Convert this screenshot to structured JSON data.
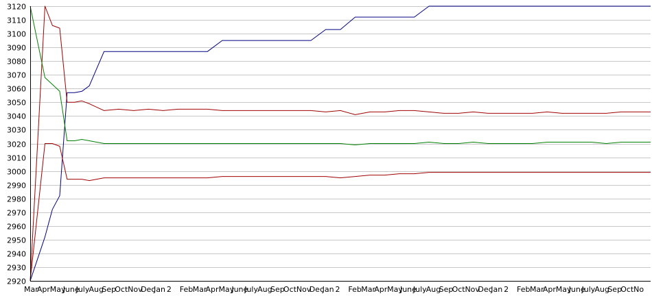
{
  "chart_data": {
    "type": "line",
    "title": "",
    "xlabel": "",
    "ylabel": "",
    "ylim": [
      2920,
      3120
    ],
    "yticks": [
      2920,
      2930,
      2940,
      2950,
      2960,
      2970,
      2980,
      2990,
      3000,
      3010,
      3020,
      3030,
      3040,
      3050,
      3060,
      3070,
      3080,
      3090,
      3100,
      3110,
      3120
    ],
    "grid": true,
    "legend": "none",
    "x": [
      0,
      1,
      1.5,
      2,
      2.5,
      3,
      3.5,
      4,
      5,
      6,
      7,
      8,
      9,
      10,
      11,
      12,
      13,
      14,
      15,
      16,
      17,
      18,
      19,
      20,
      21,
      22,
      23,
      24,
      25,
      26,
      27,
      28,
      29,
      30,
      31,
      32,
      33,
      34,
      35,
      36,
      37,
      38,
      39,
      40,
      41,
      42
    ],
    "xtick_labels": [
      "Mar",
      "Apr",
      "May",
      "June",
      "July",
      "Aug",
      "Sep",
      "Oct",
      "Nov",
      "Dec",
      "Jan",
      "2",
      "Feb",
      "Mar",
      "Apr",
      "May",
      "June",
      "July",
      "Aug",
      "Sep",
      "Oct",
      "Nov",
      "Dec",
      "Jan",
      "2",
      "Feb",
      "Mar",
      "Apr",
      "May",
      "June",
      "July",
      "Aug",
      "Sep",
      "Oct",
      "Nov",
      "Dec",
      "Jan",
      "2",
      "Feb",
      "Mar",
      "Apr",
      "May",
      "June",
      "July",
      "Aug",
      "Sep",
      "Oct",
      "No"
    ],
    "series": [
      {
        "color": "#000080",
        "values": [
          2920,
          2952,
          2972,
          2982,
          3057,
          3057,
          3058,
          3062,
          3087,
          3087,
          3087,
          3087,
          3087,
          3087,
          3087,
          3087,
          3095,
          3095,
          3095,
          3095,
          3095,
          3095,
          3095,
          3103,
          3103,
          3112,
          3112,
          3112,
          3112,
          3112,
          3120,
          3120,
          3120,
          3120,
          3120,
          3120,
          3120,
          3120,
          3120,
          3120,
          3120,
          3120,
          3120,
          3120,
          3120,
          3120
        ]
      },
      {
        "color": "#a00000",
        "values": [
          2920,
          3120,
          3106,
          3104,
          3050,
          3050,
          3051,
          3049,
          3044,
          3045,
          3044,
          3045,
          3044,
          3045,
          3045,
          3045,
          3044,
          3044,
          3044,
          3044,
          3044,
          3044,
          3044,
          3043,
          3044,
          3041,
          3043,
          3043,
          3044,
          3044,
          3043,
          3042,
          3042,
          3043,
          3042,
          3042,
          3042,
          3042,
          3043,
          3042,
          3042,
          3042,
          3042,
          3043,
          3043,
          3043
        ]
      },
      {
        "color": "#008000",
        "values": [
          3120,
          3068,
          3063,
          3058,
          3022,
          3022,
          3023,
          3022,
          3020,
          3020,
          3020,
          3020,
          3020,
          3020,
          3020,
          3020,
          3020,
          3020,
          3020,
          3020,
          3020,
          3020,
          3020,
          3020,
          3020,
          3019,
          3020,
          3020,
          3020,
          3020,
          3021,
          3020,
          3020,
          3021,
          3020,
          3020,
          3020,
          3020,
          3021,
          3021,
          3021,
          3021,
          3020,
          3021,
          3021,
          3021
        ]
      },
      {
        "color": "#a00000",
        "values": [
          2920,
          3020,
          3020,
          3018,
          2994,
          2994,
          2994,
          2993,
          2995,
          2995,
          2995,
          2995,
          2995,
          2995,
          2995,
          2995,
          2996,
          2996,
          2996,
          2996,
          2996,
          2996,
          2996,
          2996,
          2995,
          2996,
          2997,
          2997,
          2998,
          2998,
          2999,
          2999,
          2999,
          2999,
          2999,
          2999,
          2999,
          2999,
          2999,
          2999,
          2999,
          2999,
          2999,
          2999,
          2999,
          2999
        ]
      }
    ]
  }
}
